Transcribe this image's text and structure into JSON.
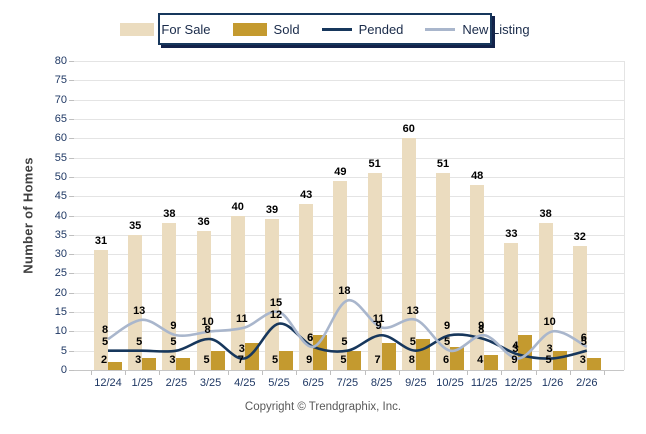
{
  "legend": {
    "items": [
      "For Sale",
      "Sold",
      "Pended",
      "New Listing"
    ]
  },
  "y_axis": {
    "min": 0,
    "max": 80,
    "step": 5
  },
  "footer": {
    "copyright": "Copyright © Trendgraphix, Inc."
  },
  "colors": {
    "for_sale": "#EBDCBF",
    "sold": "#C49A2F",
    "pended": "#17375C",
    "new_listing": "#A9B6CC",
    "grid": "#E4E4E4",
    "axis": "#C6C6C6",
    "tick_text": "#1F3864",
    "data_label": "#000000",
    "legend_border": "#17375C",
    "axis_title": "#3F3F3F",
    "copyright_text": "#595959"
  },
  "chart_data": {
    "type": "bar",
    "subtype": "combo bar+line",
    "title": "",
    "ylabel": "Number of Homes",
    "xlabel": "",
    "ylim": [
      0,
      80
    ],
    "ytick_step": 5,
    "grid": true,
    "legend_position": "top",
    "categories": [
      "12/24",
      "1/25",
      "2/25",
      "3/25",
      "4/25",
      "5/25",
      "6/25",
      "7/25",
      "8/25",
      "9/25",
      "10/25",
      "11/25",
      "12/25",
      "1/26",
      "2/26"
    ],
    "series": [
      {
        "name": "For Sale",
        "type": "bar",
        "color": "#EBDCBF",
        "values": [
          31,
          35,
          38,
          36,
          40,
          39,
          43,
          49,
          51,
          60,
          51,
          48,
          33,
          38,
          32
        ]
      },
      {
        "name": "Sold",
        "type": "bar",
        "color": "#C49A2F",
        "values": [
          2,
          3,
          3,
          5,
          7,
          5,
          9,
          5,
          7,
          8,
          6,
          4,
          9,
          5,
          3
        ]
      },
      {
        "name": "Pended",
        "type": "line",
        "color": "#17375C",
        "values": [
          5,
          5,
          5,
          8,
          3,
          12,
          6,
          5,
          9,
          5,
          9,
          8,
          4,
          3,
          5
        ]
      },
      {
        "name": "New Listing",
        "type": "line",
        "color": "#A9B6CC",
        "values": [
          8,
          13,
          9,
          10,
          11,
          15,
          6,
          18,
          11,
          13,
          5,
          9,
          3,
          10,
          6
        ]
      }
    ]
  }
}
